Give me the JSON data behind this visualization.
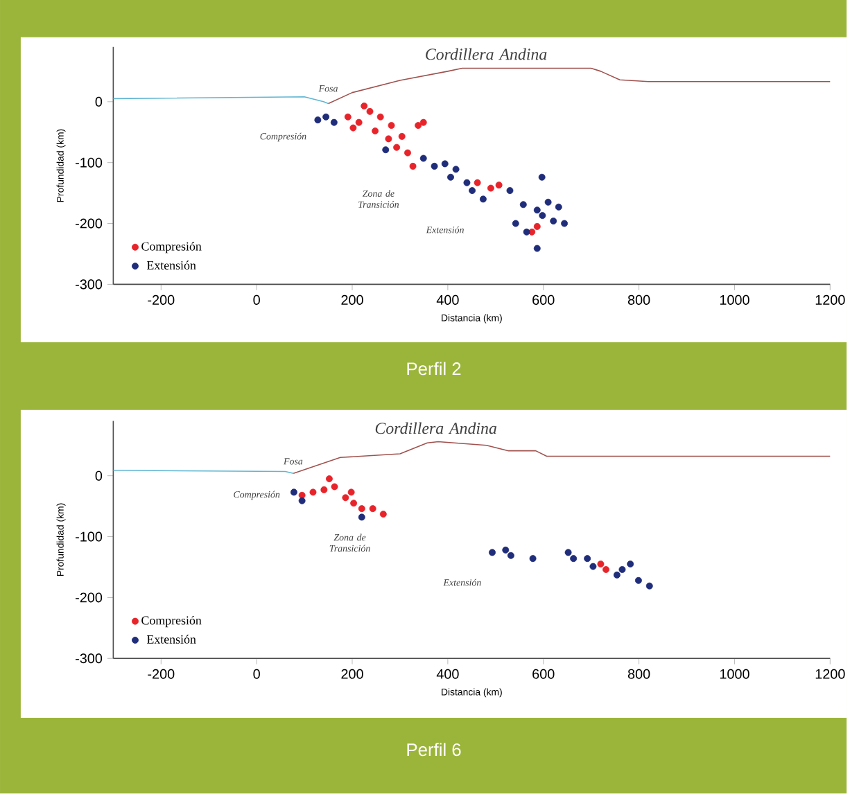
{
  "chart_data": [
    {
      "type": "scatter",
      "title": "Perfil 2",
      "xlabel": "Distancia (km)",
      "ylabel": "Profundidad (km)",
      "xlim": [
        -300,
        1200
      ],
      "ylim": [
        -300,
        90
      ],
      "xticks": [
        -200,
        0,
        200,
        400,
        600,
        800,
        1000,
        1200
      ],
      "yticks": [
        0,
        -100,
        -200,
        -300
      ],
      "legend": "bottom left",
      "grid": false,
      "annotations": [
        "Cordillera Andina",
        "Fosa",
        "Compresión",
        "Zona de Transición",
        "Extensión"
      ],
      "series": [
        {
          "name": "Compresión",
          "marker": "circle",
          "color": "#e8242b",
          "x": [
            191,
            214,
            237,
            259,
            248,
            282,
            304,
            338,
            349,
            293,
            316,
            327,
            225,
            276,
            202,
            462,
            490,
            507,
            587,
            576
          ],
          "values": [
            -25,
            -34,
            -16,
            -25,
            -48,
            -39,
            -57,
            -39,
            -34,
            -75,
            -84,
            -106,
            -7,
            -61,
            -43,
            -133,
            -142,
            -137,
            -205,
            -214
          ]
        },
        {
          "name": "Extensión",
          "marker": "circle",
          "color": "#1f2d7a",
          "x": [
            128,
            145,
            162,
            270,
            349,
            372,
            394,
            417,
            406,
            440,
            474,
            451,
            530,
            597,
            558,
            587,
            610,
            632,
            644,
            542,
            565,
            587,
            621,
            598
          ],
          "values": [
            -30,
            -25,
            -34,
            -79,
            -93,
            -106,
            -102,
            -111,
            -124,
            -133,
            -160,
            -146,
            -146,
            -124,
            -169,
            -178,
            -165,
            -173,
            -200,
            -200,
            -214,
            -241,
            -196,
            -187
          ]
        },
        {
          "type": "line",
          "color": "#5fb6d3",
          "line_style": "solid",
          "x": [
            -300,
            100,
            140,
            150
          ],
          "values": [
            5,
            8,
            0,
            -3
          ]
        },
        {
          "type": "line",
          "color": "#a0524e",
          "line_style": "solid",
          "x": [
            150,
            200,
            300,
            400,
            430,
            700,
            720,
            760,
            820,
            1200
          ],
          "values": [
            -3,
            15,
            35,
            50,
            55,
            55,
            50,
            36,
            33,
            33
          ]
        }
      ]
    },
    {
      "type": "scatter",
      "title": "Perfil 6",
      "xlabel": "Distancia (km)",
      "ylabel": "Profundidad (km)",
      "xlim": [
        -300,
        1200
      ],
      "ylim": [
        -300,
        90
      ],
      "xticks": [
        -200,
        0,
        200,
        400,
        600,
        800,
        1000,
        1200
      ],
      "yticks": [
        0,
        -100,
        -200,
        -300
      ],
      "legend": "bottom left",
      "grid": false,
      "annotations": [
        "Cordillera Andina",
        "Fosa",
        "Compresión",
        "Zona de Transición",
        "Extensión"
      ],
      "series": [
        {
          "name": "Compresión",
          "marker": "circle",
          "color": "#e8242b",
          "x": [
            95,
            118,
            141,
            152,
            163,
            186,
            203,
            220,
            243,
            265,
            198,
            731,
            720
          ],
          "values": [
            -32,
            -27,
            -23,
            -5,
            -18,
            -36,
            -45,
            -54,
            -54,
            -63,
            -27,
            -154,
            -145
          ]
        },
        {
          "name": "Extensión",
          "marker": "circle",
          "color": "#1f2d7a",
          "x": [
            78,
            95,
            220,
            493,
            521,
            532,
            578,
            652,
            692,
            704,
            765,
            782,
            799,
            822,
            754,
            663
          ],
          "values": [
            -27,
            -41,
            -68,
            -126,
            -122,
            -131,
            -136,
            -126,
            -136,
            -149,
            -154,
            -145,
            -172,
            -181,
            -163,
            -136
          ]
        },
        {
          "type": "line",
          "color": "#5fb6d3",
          "line_style": "solid",
          "x": [
            -300,
            60,
            77
          ],
          "values": [
            9,
            7,
            4
          ]
        },
        {
          "type": "line",
          "color": "#a0524e",
          "line_style": "solid",
          "x": [
            77,
            175,
            300,
            357,
            380,
            481,
            527,
            584,
            607,
            1200
          ],
          "values": [
            4,
            30,
            36,
            54,
            56,
            50,
            41,
            41,
            32,
            32
          ]
        }
      ]
    }
  ]
}
